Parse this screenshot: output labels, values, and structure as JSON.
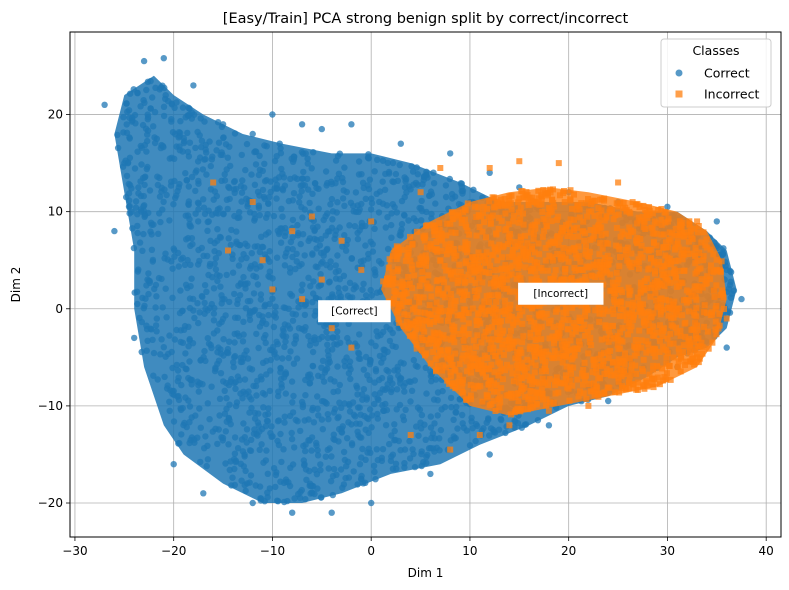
{
  "chart_data": {
    "type": "scatter",
    "title": "[Easy/Train] PCA strong benign split by correct/incorrect",
    "xlabel": "Dim 1",
    "ylabel": "Dim 2",
    "xlim": [
      -30.5,
      41.5
    ],
    "ylim": [
      -23.5,
      28.5
    ],
    "xticks": [
      -30,
      -20,
      -10,
      0,
      10,
      20,
      30,
      40
    ],
    "yticks": [
      -20,
      -10,
      0,
      10,
      20
    ],
    "grid": true,
    "legend": {
      "title": "Classes",
      "placement": "top-right"
    },
    "series": [
      {
        "name": "Correct",
        "marker": "circle",
        "color": "#1f77b4",
        "cloud": [
          [
            -25,
            22
          ],
          [
            -22,
            24
          ],
          [
            -20,
            22
          ],
          [
            -17,
            20
          ],
          [
            -13,
            18
          ],
          [
            -9,
            17
          ],
          [
            -4,
            16
          ],
          [
            0,
            16
          ],
          [
            4,
            15
          ],
          [
            9,
            13
          ],
          [
            13,
            11
          ],
          [
            17,
            11
          ],
          [
            22,
            11
          ],
          [
            27,
            10
          ],
          [
            31,
            10
          ],
          [
            34,
            8
          ],
          [
            36,
            6
          ],
          [
            37,
            2
          ],
          [
            36,
            -2
          ],
          [
            34,
            -4
          ],
          [
            31,
            -5
          ],
          [
            28,
            -7
          ],
          [
            24,
            -9
          ],
          [
            20,
            -10
          ],
          [
            16,
            -12
          ],
          [
            11,
            -14
          ],
          [
            7,
            -16
          ],
          [
            2,
            -17
          ],
          [
            -3,
            -19
          ],
          [
            -7,
            -20
          ],
          [
            -11,
            -20
          ],
          [
            -15,
            -18
          ],
          [
            -19,
            -15
          ],
          [
            -21,
            -12
          ],
          [
            -23,
            -6
          ],
          [
            -24,
            0
          ],
          [
            -24,
            6
          ],
          [
            -25,
            12
          ],
          [
            -26,
            18
          ]
        ],
        "sample_points": [
          [
            -27,
            21
          ],
          [
            -23,
            25.5
          ],
          [
            -21,
            25.8
          ],
          [
            -18,
            23
          ],
          [
            -15,
            19
          ],
          [
            -12,
            18
          ],
          [
            -10,
            20
          ],
          [
            -7,
            19
          ],
          [
            -5,
            18.5
          ],
          [
            -2,
            19
          ],
          [
            3,
            17
          ],
          [
            8,
            16
          ],
          [
            12,
            14
          ],
          [
            15,
            12.5
          ],
          [
            20,
            12
          ],
          [
            25,
            11
          ],
          [
            30,
            10.5
          ],
          [
            35,
            9
          ],
          [
            37.5,
            1
          ],
          [
            36,
            -4
          ],
          [
            31,
            -6
          ],
          [
            24,
            -9.5
          ],
          [
            18,
            -12
          ],
          [
            12,
            -15
          ],
          [
            6,
            -17
          ],
          [
            0,
            -20
          ],
          [
            -4,
            -21
          ],
          [
            -8,
            -21
          ],
          [
            -12,
            -20
          ],
          [
            -17,
            -19
          ],
          [
            -20,
            -16
          ],
          [
            -24,
            -3
          ],
          [
            -26,
            8
          ],
          [
            -25,
            15
          ]
        ]
      },
      {
        "name": "Incorrect",
        "marker": "square",
        "color": "#ff7f0e",
        "cloud": [
          [
            2,
            6
          ],
          [
            6,
            9
          ],
          [
            10,
            11
          ],
          [
            14,
            12
          ],
          [
            18,
            12.5
          ],
          [
            22,
            12
          ],
          [
            27,
            11
          ],
          [
            31,
            10
          ],
          [
            34,
            8
          ],
          [
            35.5,
            5
          ],
          [
            36,
            1
          ],
          [
            35,
            -3
          ],
          [
            33,
            -6
          ],
          [
            29,
            -8
          ],
          [
            24,
            -9
          ],
          [
            19,
            -10
          ],
          [
            14,
            -11
          ],
          [
            10,
            -10
          ],
          [
            6,
            -6
          ],
          [
            3,
            -2
          ],
          [
            1,
            2
          ]
        ],
        "sample_points": [
          [
            -16,
            13
          ],
          [
            -14.5,
            6
          ],
          [
            -12,
            11
          ],
          [
            -11,
            5
          ],
          [
            -10,
            2
          ],
          [
            -8,
            8
          ],
          [
            -6,
            9.5
          ],
          [
            -7,
            1
          ],
          [
            -5,
            3
          ],
          [
            -4,
            -2
          ],
          [
            -3,
            7
          ],
          [
            -1,
            4
          ],
          [
            -2,
            -4
          ],
          [
            0,
            9
          ],
          [
            2,
            3
          ],
          [
            5,
            12
          ],
          [
            7,
            14.5
          ],
          [
            12,
            14.5
          ],
          [
            15,
            15.2
          ],
          [
            19,
            15
          ],
          [
            25,
            13
          ],
          [
            33,
            9
          ],
          [
            35,
            4
          ],
          [
            36,
            -1
          ],
          [
            33,
            -5
          ],
          [
            28,
            -8
          ],
          [
            22,
            -10
          ],
          [
            18,
            -10.5
          ],
          [
            14,
            -12
          ],
          [
            11,
            -13
          ],
          [
            8,
            -14.5
          ],
          [
            4,
            -13
          ]
        ]
      }
    ],
    "annotations": [
      {
        "text": "[Correct]",
        "x": -1.7,
        "y": -0.2
      },
      {
        "text": "[Incorrect]",
        "x": 19.2,
        "y": 1.6
      }
    ]
  }
}
